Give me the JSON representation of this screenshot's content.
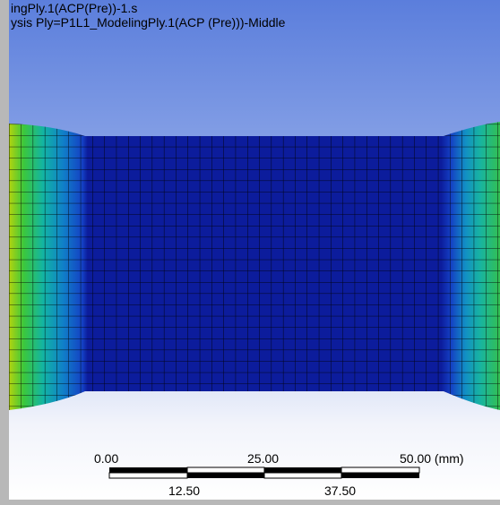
{
  "header": {
    "lines": [
      "ingPly.1(ACP(Pre))-1.s",
      "ysis Ply=P1L1_ModelingPly.1(ACP (Pre)))-Middle"
    ]
  },
  "scale_bar": {
    "top_labels": [
      "0.00",
      "25.00",
      "50.00 (mm)"
    ],
    "bottom_labels": [
      "12.50",
      "37.50"
    ]
  }
}
